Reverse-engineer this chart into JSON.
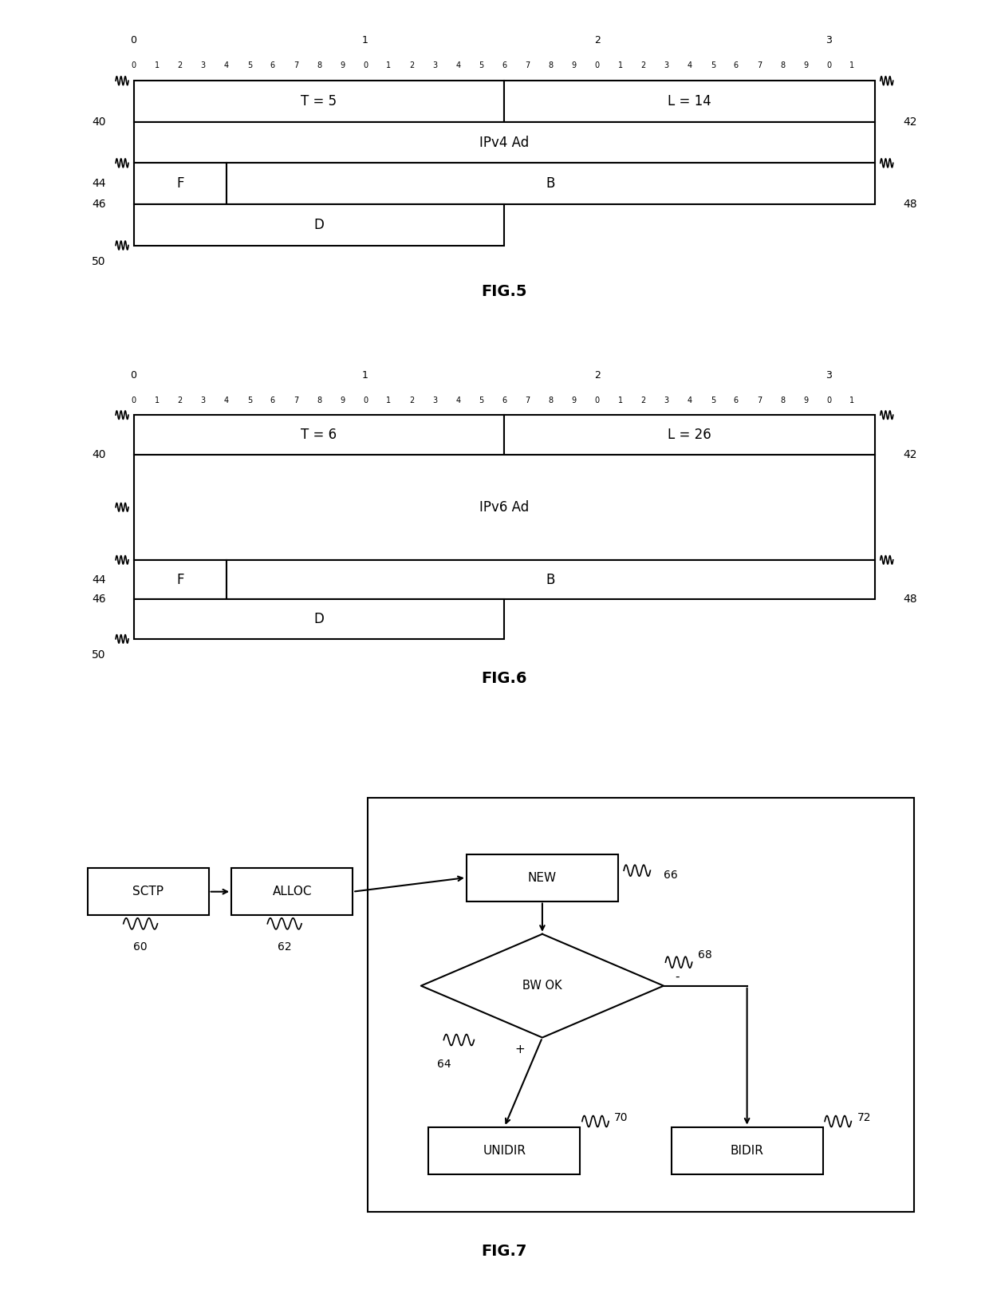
{
  "bg_color": "#ffffff",
  "fig_width": 12.4,
  "fig_height": 16.22,
  "fig5": {
    "title": "FIG.5",
    "decade_labels": [
      "0",
      "1",
      "2",
      "3"
    ],
    "row1_left": "T = 5",
    "row1_right": "L = 14",
    "row2": "IPv4 Ad",
    "row3_left": "F",
    "row3_right": "B",
    "row4": "D",
    "label_40": "40",
    "label_42": "42",
    "label_44": "44",
    "label_46": "46",
    "label_48": "48",
    "label_50": "50"
  },
  "fig6": {
    "title": "FIG.6",
    "decade_labels": [
      "0",
      "1",
      "2",
      "3"
    ],
    "row1_left": "T = 6",
    "row1_right": "L = 26",
    "row2": "IPv6 Ad",
    "row3_left": "F",
    "row3_right": "B",
    "row4": "D",
    "label_40": "40",
    "label_42": "42",
    "label_44": "44",
    "label_46": "46",
    "label_48": "48",
    "label_50": "50"
  },
  "fig7": {
    "title": "FIG.7",
    "sctp_label": "SCTP",
    "alloc_label": "ALLOC",
    "new_label": "NEW",
    "decision_label": "BW OK",
    "unidir_label": "UNIDIR",
    "bidir_label": "BIDIR",
    "ref60": "60",
    "ref62": "62",
    "ref64": "64",
    "ref66": "66",
    "ref68": "68",
    "ref70": "70",
    "ref72": "72",
    "plus_label": "+",
    "minus_label": "-"
  }
}
